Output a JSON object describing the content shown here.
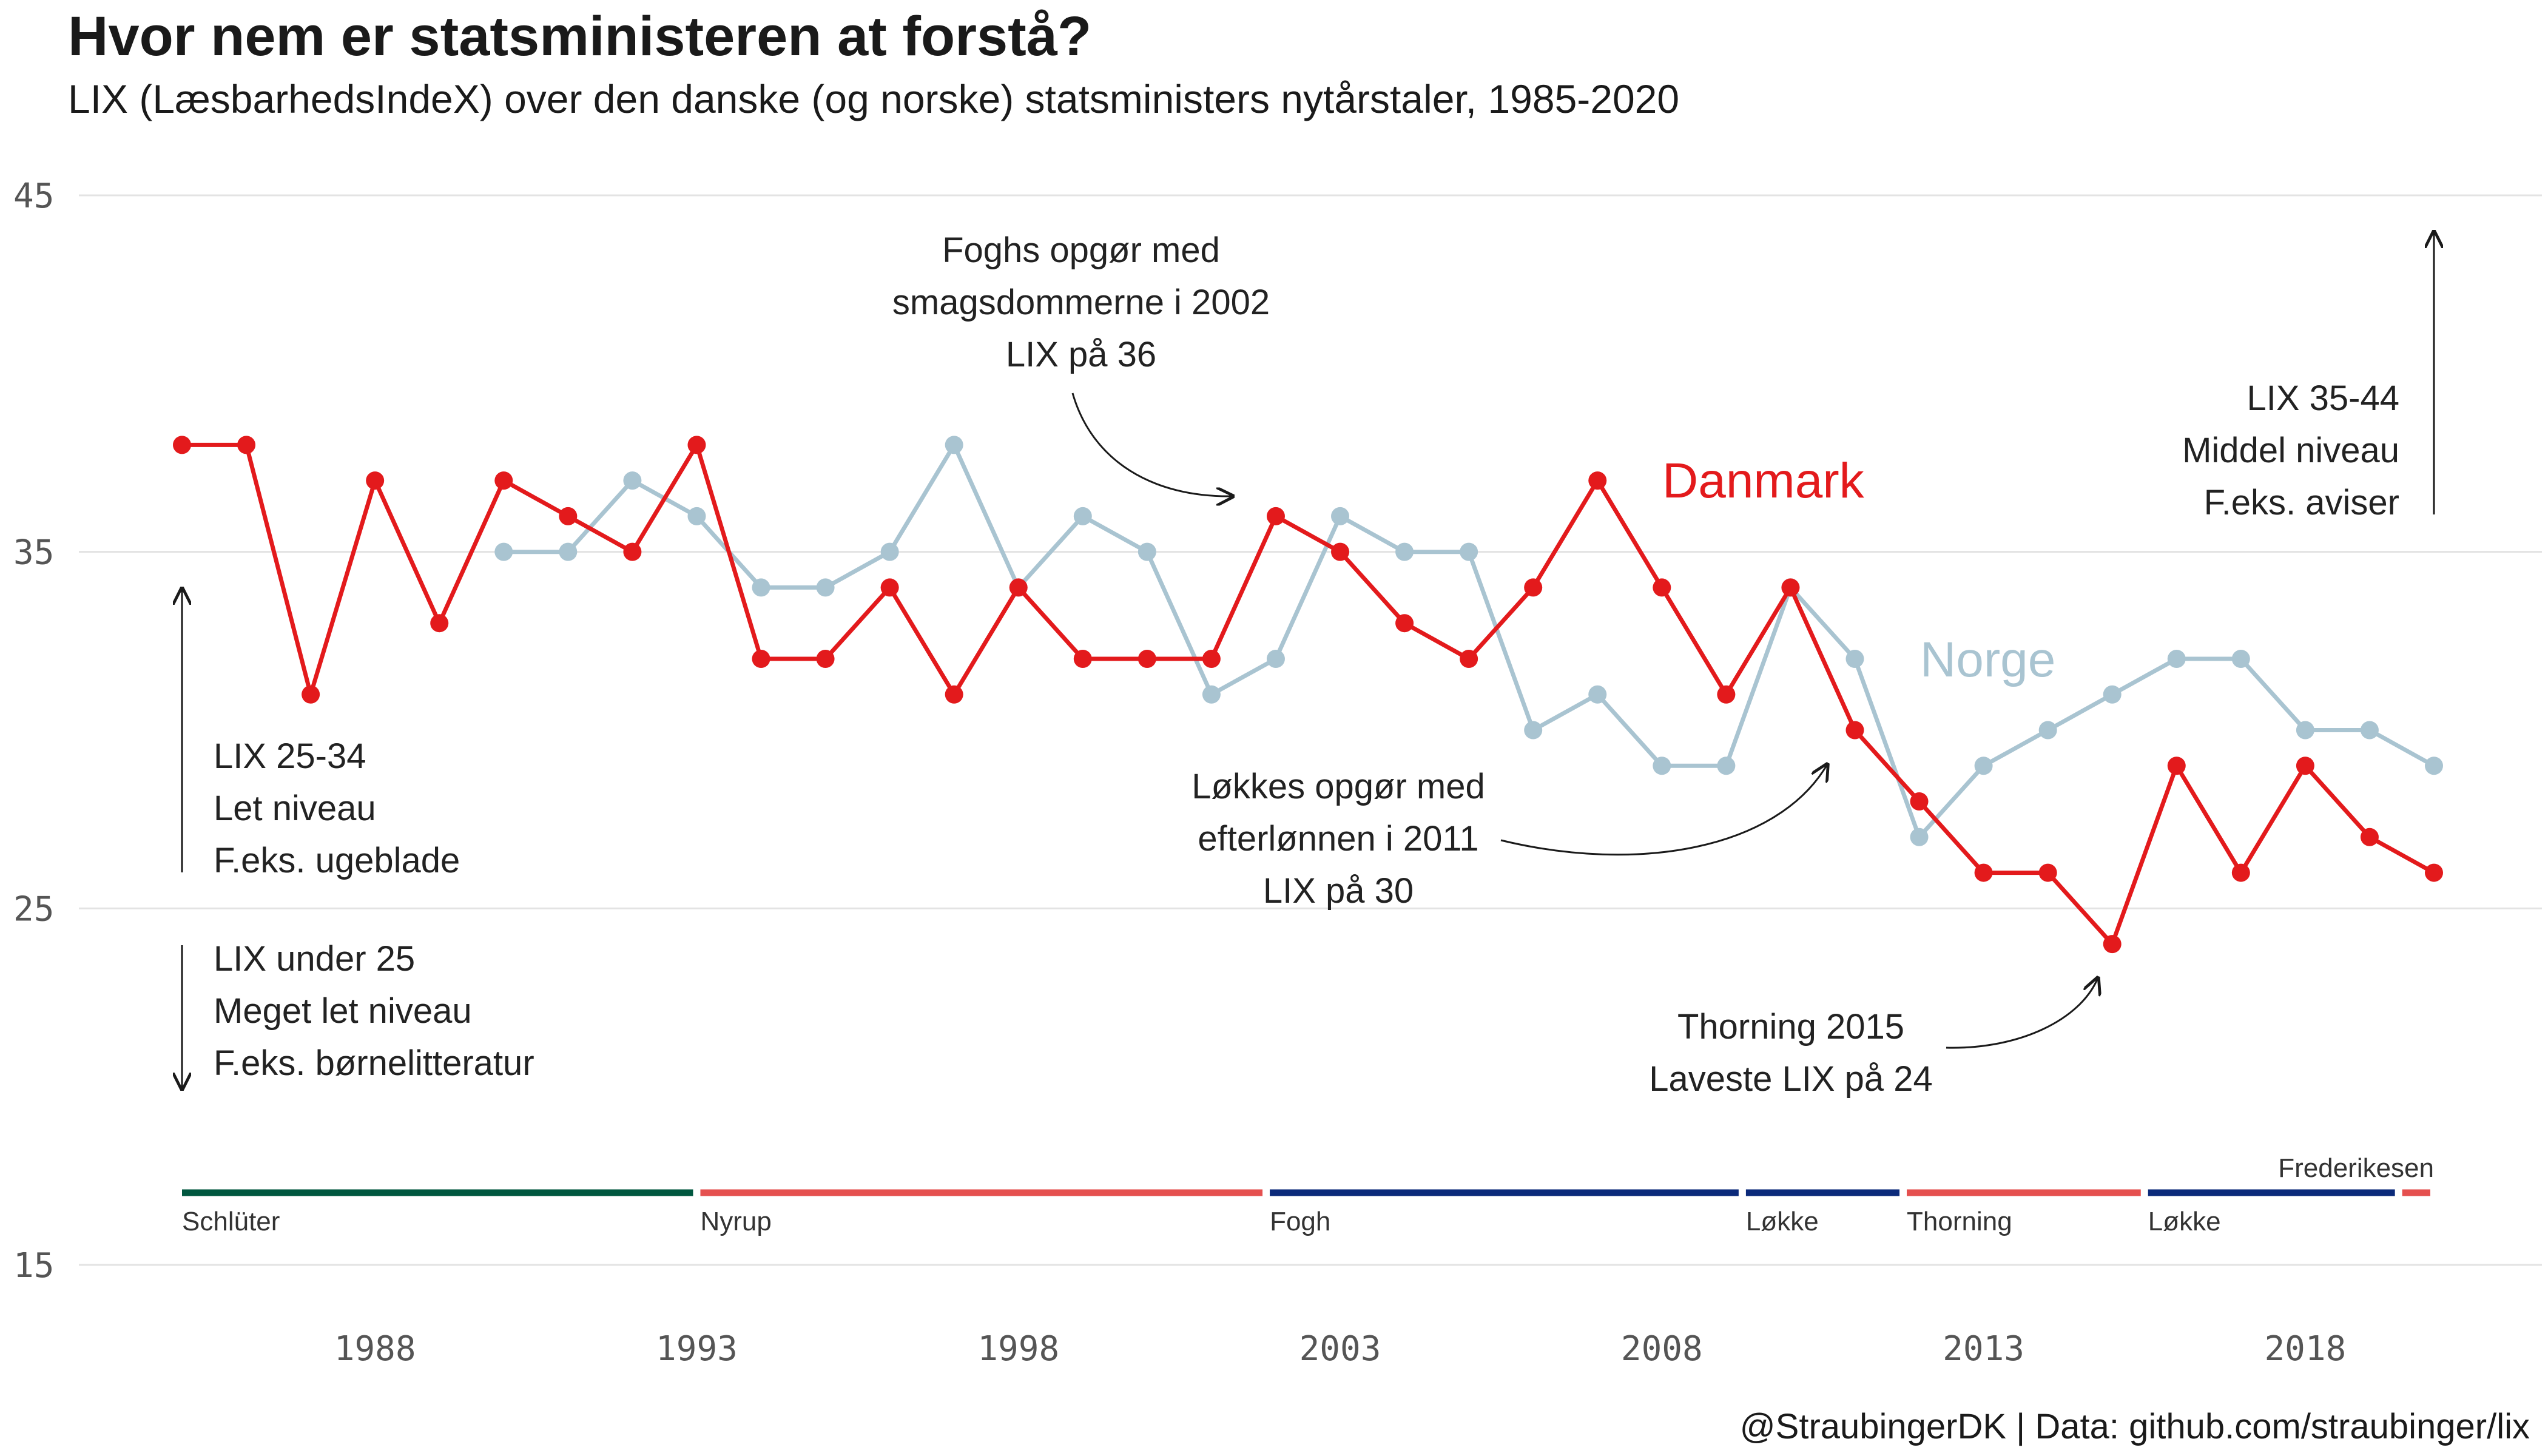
{
  "chart_data": {
    "type": "line",
    "title": "Hvor nem er statsministeren at forstå?",
    "subtitle": "LIX (LæsbarhedsIndeX) over den danske (og norske) statsministers nytårstaler, 1985-2020",
    "caption": "@StraubingerDK | Data: github.com/straubinger/lix",
    "xlim": [
      1985,
      2020
    ],
    "ylim": [
      15,
      45
    ],
    "x_ticks": [
      1988,
      1993,
      1998,
      2003,
      2008,
      2013,
      2018
    ],
    "y_ticks": [
      15,
      25,
      35,
      45
    ],
    "grid": "horizontal",
    "series": [
      {
        "name": "Danmark",
        "color": "#e31a1c",
        "x": [
          1985,
          1986,
          1987,
          1988,
          1989,
          1990,
          1991,
          1992,
          1993,
          1994,
          1995,
          1996,
          1997,
          1998,
          1999,
          2000,
          2001,
          2002,
          2003,
          2004,
          2005,
          2006,
          2007,
          2008,
          2009,
          2010,
          2011,
          2012,
          2013,
          2014,
          2015,
          2016,
          2017,
          2018,
          2019,
          2020
        ],
        "y": [
          38,
          38,
          31,
          37,
          33,
          37,
          36,
          35,
          38,
          32,
          32,
          34,
          31,
          34,
          32,
          32,
          32,
          36,
          35,
          33,
          32,
          34,
          37,
          34,
          31,
          34,
          30,
          28,
          26,
          26,
          24,
          29,
          26,
          29,
          27,
          26
        ]
      },
      {
        "name": "Norge",
        "color": "#a9c4d1",
        "x": [
          1990,
          1991,
          1992,
          1993,
          1994,
          1995,
          1996,
          1997,
          1998,
          1999,
          2000,
          2001,
          2002,
          2003,
          2004,
          2005,
          2006,
          2007,
          2008,
          2009,
          2010,
          2011,
          2012,
          2013,
          2014,
          2015,
          2016,
          2017,
          2018,
          2019,
          2020
        ],
        "y": [
          35,
          35,
          37,
          36,
          34,
          34,
          35,
          38,
          34,
          36,
          35,
          31,
          32,
          36,
          35,
          35,
          30,
          31,
          29,
          29,
          34,
          32,
          27,
          29,
          30,
          31,
          32,
          32,
          30,
          30,
          29
        ]
      }
    ],
    "annotations": [
      {
        "id": "fogh",
        "lines": [
          "Foghs opgør med",
          "smagsdommerne i 2002",
          "LIX på 36"
        ]
      },
      {
        "id": "lokke",
        "lines": [
          "Løkkes opgør med",
          "efterlønnen i 2011",
          "LIX på 30"
        ]
      },
      {
        "id": "thorning",
        "lines": [
          "Thorning 2015",
          "Laveste LIX på 24"
        ]
      },
      {
        "id": "middel",
        "lines": [
          "LIX 35-44",
          "Middel niveau",
          "F.eks. aviser"
        ]
      },
      {
        "id": "let",
        "lines": [
          "LIX 25-34",
          "Let niveau",
          "F.eks. ugeblade"
        ]
      },
      {
        "id": "meget-let",
        "lines": [
          "LIX under 25",
          "Meget let niveau",
          "F.eks. børnelitteratur"
        ]
      }
    ],
    "pm_periods": [
      {
        "name": "Schlüter",
        "start": 1985,
        "end": 1993,
        "color": "#00573f"
      },
      {
        "name": "Nyrup",
        "start": 1993,
        "end": 2001.85,
        "color": "#e5504f"
      },
      {
        "name": "Fogh",
        "start": 2001.85,
        "end": 2009.25,
        "color": "#0b2a7a"
      },
      {
        "name": "Løkke",
        "start": 2009.25,
        "end": 2011.75,
        "color": "#0b2a7a"
      },
      {
        "name": "Thorning",
        "start": 2011.75,
        "end": 2015.5,
        "color": "#e5504f"
      },
      {
        "name": "Løkke",
        "start": 2015.5,
        "end": 2019.45,
        "color": "#0b2a7a"
      },
      {
        "name": "Frederikesen",
        "start": 2019.45,
        "end": 2020,
        "color": "#e5504f"
      }
    ]
  }
}
